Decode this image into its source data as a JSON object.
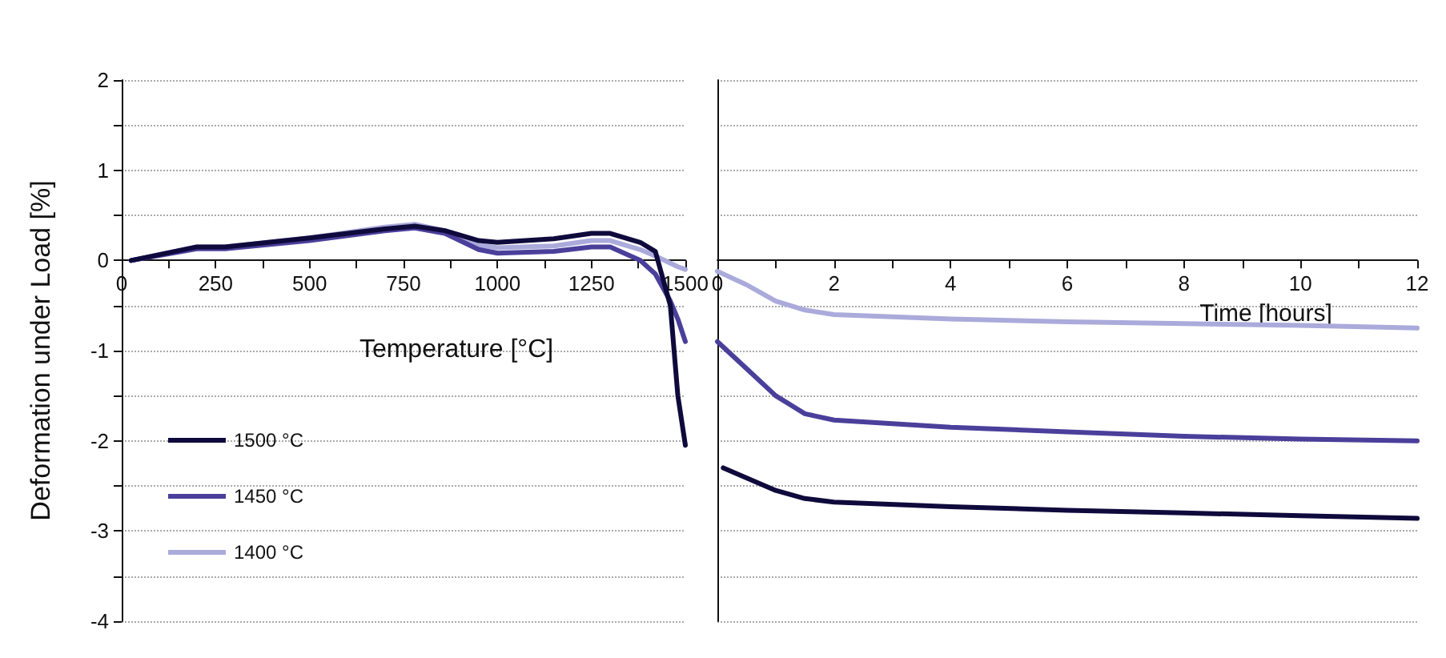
{
  "chart_data": [
    {
      "type": "line",
      "xlabel": "Temperature [°C]",
      "ylabel": "Deformation under Load [%]",
      "xlim": [
        0,
        1500
      ],
      "xticks": [
        0,
        {
          "value": 125,
          "label": null
        },
        250,
        {
          "value": 375,
          "label": null
        },
        500,
        {
          "value": 625,
          "label": null
        },
        750,
        {
          "value": 875,
          "label": null
        },
        1000,
        {
          "value": 1125,
          "label": null
        },
        1250,
        {
          "value": 1375,
          "label": null
        },
        1500
      ],
      "ylim": [
        -4,
        2
      ],
      "yticks": [
        -4,
        {
          "value": -3.5,
          "label": null
        },
        -3,
        {
          "value": -2.5,
          "label": null
        },
        -2,
        {
          "value": -1.5,
          "label": null
        },
        -1,
        {
          "value": -0.5,
          "label": null
        },
        0,
        {
          "value": 0.5,
          "label": null
        },
        1,
        {
          "value": 1.5,
          "label": null
        },
        2
      ],
      "grid": "y",
      "legend": "bottom left",
      "marker": "none",
      "line_style": "solid",
      "x": [
        25,
        200,
        275,
        500,
        700,
        780,
        860,
        950,
        1000,
        1150,
        1250,
        1300,
        1380,
        1420,
        1460,
        1480,
        1500
      ],
      "series": [
        {
          "name": "1500 °C",
          "color": "#0f0a3c",
          "values": [
            0,
            0.15,
            0.15,
            0.25,
            0.35,
            0.38,
            0.33,
            0.22,
            0.2,
            0.24,
            0.3,
            0.3,
            0.2,
            0.1,
            -0.5,
            -1.5,
            -2.05
          ]
        },
        {
          "name": "1450 °C",
          "color": "#4a3f9a",
          "values": [
            0,
            0.13,
            0.13,
            0.22,
            0.33,
            0.36,
            0.3,
            0.12,
            0.08,
            0.1,
            0.15,
            0.15,
            0.0,
            -0.15,
            -0.45,
            -0.65,
            -0.9
          ]
        },
        {
          "name": "1400 °C",
          "color": "#aaaadb",
          "values": [
            0,
            0.15,
            0.15,
            0.25,
            0.37,
            0.4,
            0.33,
            0.17,
            0.14,
            0.16,
            0.22,
            0.22,
            0.12,
            0.05,
            -0.03,
            -0.07,
            -0.1
          ]
        }
      ]
    },
    {
      "type": "line",
      "xlabel": "Time [hours]",
      "xlim": [
        0,
        12
      ],
      "xticks": [
        0,
        {
          "value": 1,
          "label": null
        },
        2,
        {
          "value": 3,
          "label": null
        },
        4,
        {
          "value": 5,
          "label": null
        },
        6,
        {
          "value": 7,
          "label": null
        },
        8,
        {
          "value": 9,
          "label": null
        },
        10,
        {
          "value": 11,
          "label": null
        },
        12
      ],
      "ylim": [
        -4,
        2
      ],
      "yticks": [
        -4,
        {
          "value": -3.5,
          "label": null
        },
        -3,
        {
          "value": -2.5,
          "label": null
        },
        -2,
        {
          "value": -1.5,
          "label": null
        },
        -1,
        {
          "value": -0.5,
          "label": null
        },
        0,
        {
          "value": 0.5,
          "label": null
        },
        1,
        {
          "value": 1.5,
          "label": null
        },
        2
      ],
      "tick_labels": "x",
      "grid": "y",
      "marker": "none",
      "line_style": "solid",
      "series": [
        {
          "color": "#0f0a3c",
          "x": [
            0.1,
            1,
            1.5,
            2,
            4,
            6,
            8,
            10,
            12
          ],
          "values": [
            -2.3,
            -2.55,
            -2.64,
            -2.68,
            -2.73,
            -2.77,
            -2.8,
            -2.83,
            -2.86
          ]
        },
        {
          "color": "#4a3f9a",
          "x": [
            0,
            0.5,
            1,
            1.5,
            2,
            4,
            6,
            8,
            10,
            12
          ],
          "values": [
            -0.9,
            -1.2,
            -1.5,
            -1.7,
            -1.77,
            -1.85,
            -1.9,
            -1.95,
            -1.98,
            -2.0
          ]
        },
        {
          "color": "#aaaadb",
          "x": [
            0,
            0.5,
            1,
            1.5,
            2,
            4,
            6,
            8,
            10,
            12
          ],
          "values": [
            -0.12,
            -0.27,
            -0.45,
            -0.55,
            -0.6,
            -0.65,
            -0.68,
            -0.7,
            -0.72,
            -0.75
          ]
        }
      ]
    }
  ]
}
